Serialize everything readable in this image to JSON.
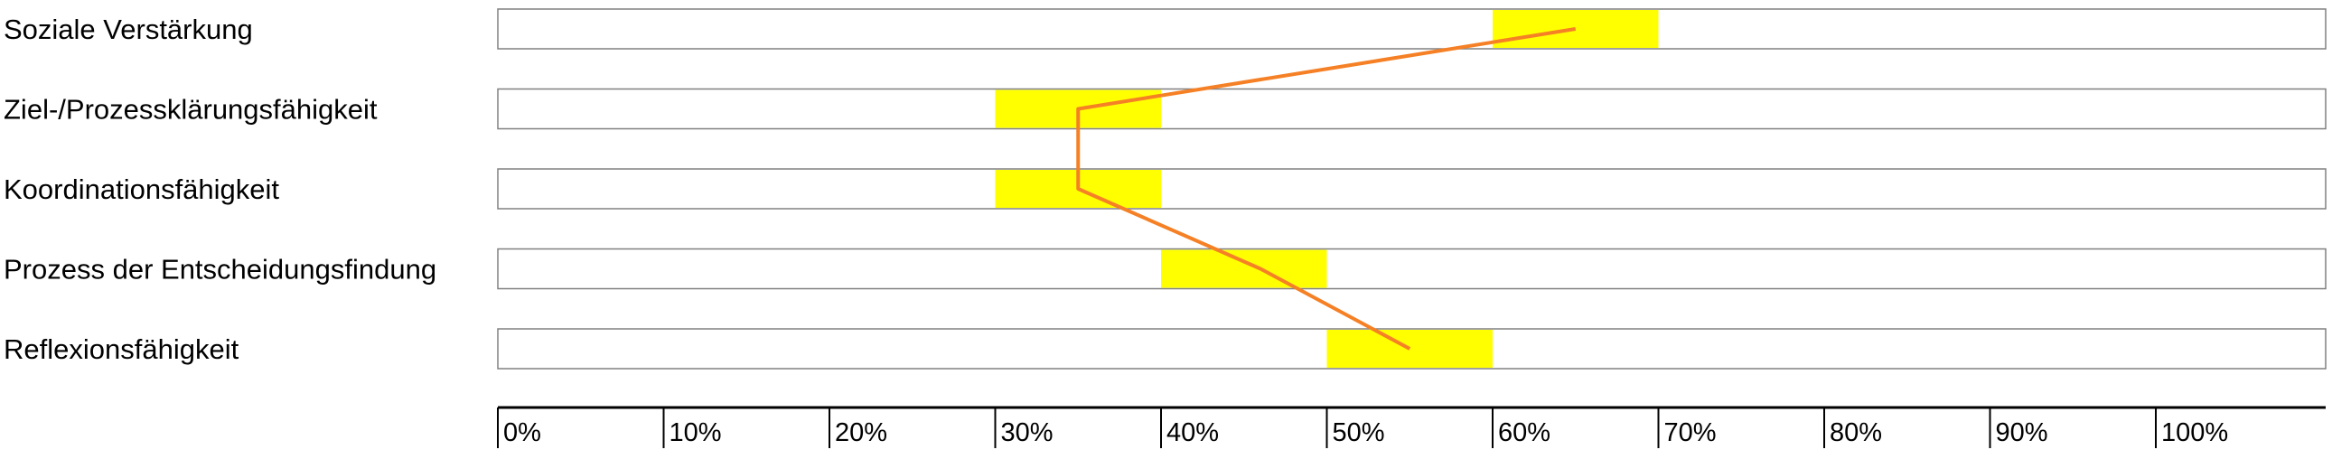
{
  "chart_data": {
    "type": "bar",
    "title": "",
    "xlabel": "",
    "ylabel": "",
    "xlim": [
      0,
      110
    ],
    "grid": false,
    "legend": "none",
    "categories": [
      "Soziale Verstärkung",
      "Ziel-/Prozessklärungsfähigkeit",
      "Koordinationsfähigkeit",
      "Prozess der Entscheidungsfindung",
      "Reflexionsfähigkeit"
    ],
    "ranges": [
      {
        "category": "Soziale Verstärkung",
        "from": 60,
        "to": 70
      },
      {
        "category": "Ziel-/Prozessklärungsfähigkeit",
        "from": 30,
        "to": 40
      },
      {
        "category": "Koordinationsfähigkeit",
        "from": 30,
        "to": 40
      },
      {
        "category": "Prozess der Entscheidungsfindung",
        "from": 40,
        "to": 50
      },
      {
        "category": "Reflexionsfähigkeit",
        "from": 50,
        "to": 60
      }
    ],
    "line_values": [
      65,
      35,
      35,
      46,
      55
    ],
    "x_ticks": [
      0,
      10,
      20,
      30,
      40,
      50,
      60,
      70,
      80,
      90,
      100
    ],
    "x_tick_labels": [
      "0%",
      "10%",
      "20%",
      "30%",
      "40%",
      "50%",
      "60%",
      "70%",
      "80%",
      "90%",
      "100%"
    ],
    "colors": {
      "range_fill": "#FFFF00",
      "line": "#F58025",
      "track_border": "#808080",
      "axis": "#000000"
    }
  }
}
